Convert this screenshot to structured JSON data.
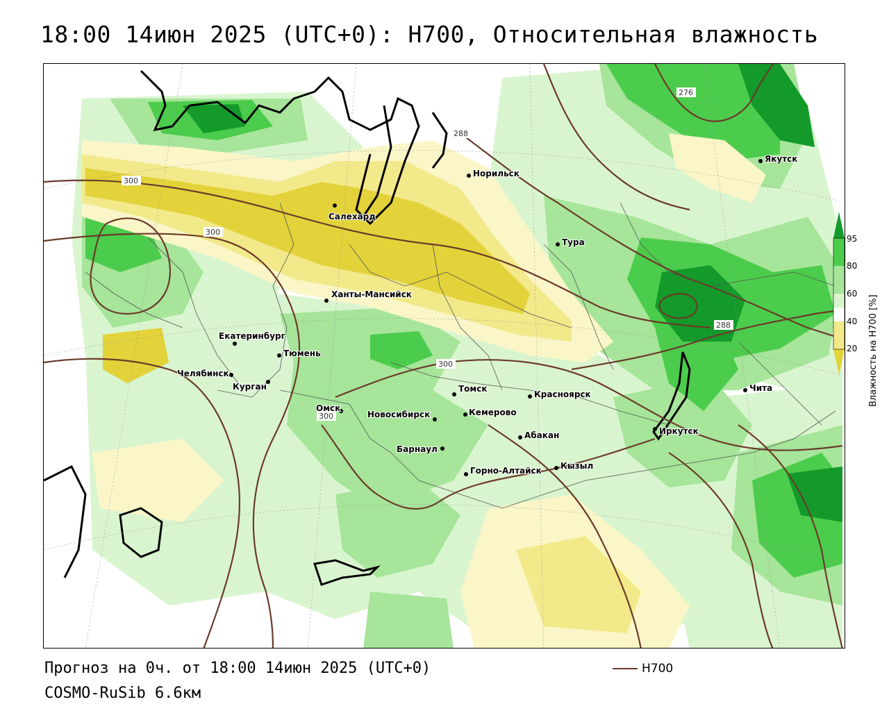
{
  "title": "18:00 14июн 2025 (UTC+0): H700, Относительная влажность",
  "footer": {
    "forecast": "Прогноз на 0ч. от 18:00 14июн 2025 (UTC+0)",
    "model": "COSMO-RuSib 6.6км"
  },
  "line_legend": {
    "label": "H700"
  },
  "colors": {
    "dry_strong": "#e3d23a",
    "dry_medium": "#f2e98a",
    "dry_light": "#faf6c8",
    "moist_light": "#d9f5cf",
    "moist_medium": "#a6e59a",
    "moist_strong": "#4ccc4c",
    "moist_max": "#139a2a",
    "isoline": "#6b3a2a",
    "coast": "#000000"
  },
  "colorbar": {
    "title": "Влажность на H700 [%]",
    "ticks": [
      "95",
      "80",
      "60",
      "40",
      "20"
    ]
  },
  "isolines": [
    {
      "label": "300"
    },
    {
      "label": "300"
    },
    {
      "label": "300"
    },
    {
      "label": "300"
    },
    {
      "label": "288"
    },
    {
      "label": "288"
    },
    {
      "label": "276"
    }
  ],
  "cities": [
    {
      "name": "Норильск"
    },
    {
      "name": "Якутск"
    },
    {
      "name": "Салехард"
    },
    {
      "name": "Тура"
    },
    {
      "name": "Ханты-Мансийск"
    },
    {
      "name": "Екатеринбург"
    },
    {
      "name": "Тюмень"
    },
    {
      "name": "Челябинск"
    },
    {
      "name": "Курган"
    },
    {
      "name": "Омск"
    },
    {
      "name": "Новосибирск"
    },
    {
      "name": "Томск"
    },
    {
      "name": "Кемерово"
    },
    {
      "name": "Красноярск"
    },
    {
      "name": "Барнаул"
    },
    {
      "name": "Абакан"
    },
    {
      "name": "Горно-Алтайск"
    },
    {
      "name": "Кызыл"
    },
    {
      "name": "Иркутск"
    },
    {
      "name": "Чита"
    }
  ]
}
